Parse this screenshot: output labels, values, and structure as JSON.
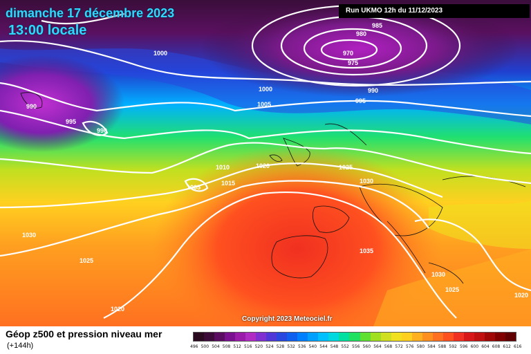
{
  "header": {
    "date": "dimanche 17 décembre 2023",
    "time": "13:00 locale",
    "run": "Run UKMO 12h du 11/12/2023"
  },
  "copyright": "Copyright 2023 Meteociel.fr",
  "legend": {
    "title": "Géop z500 et pression niveau mer",
    "subtitle": "(+144h)",
    "scale_labels": [
      "496",
      "500",
      "504",
      "508",
      "512",
      "516",
      "520",
      "524",
      "528",
      "532",
      "536",
      "540",
      "544",
      "548",
      "552",
      "556",
      "560",
      "564",
      "568",
      "572",
      "576",
      "580",
      "584",
      "588",
      "592",
      "596",
      "600",
      "604",
      "608",
      "612",
      "616"
    ],
    "scale_colors": [
      "#2a0a1e",
      "#3c0b3a",
      "#5a0d60",
      "#7a1090",
      "#9a1aaa",
      "#b02ac4",
      "#8030d0",
      "#5038d8",
      "#2848e0",
      "#1060f0",
      "#0080ff",
      "#00a0ff",
      "#00c0ff",
      "#00d8e0",
      "#00e0a0",
      "#20e060",
      "#60e030",
      "#a0e020",
      "#d0e020",
      "#f0e020",
      "#ffd020",
      "#ffb020",
      "#ff9020",
      "#ff7020",
      "#ff5020",
      "#f03020",
      "#d81818",
      "#c01010",
      "#a00808",
      "#800000",
      "#600000"
    ]
  },
  "isobars": {
    "labels": [
      "985",
      "980",
      "970",
      "975",
      "1000",
      "990",
      "995",
      "990",
      "1000",
      "1005",
      "990",
      "995",
      "1010",
      "1020",
      "1025",
      "1030",
      "1005",
      "1015",
      "1030",
      "1025",
      "1035",
      "1030",
      "1025",
      "1020",
      "1020"
    ]
  }
}
